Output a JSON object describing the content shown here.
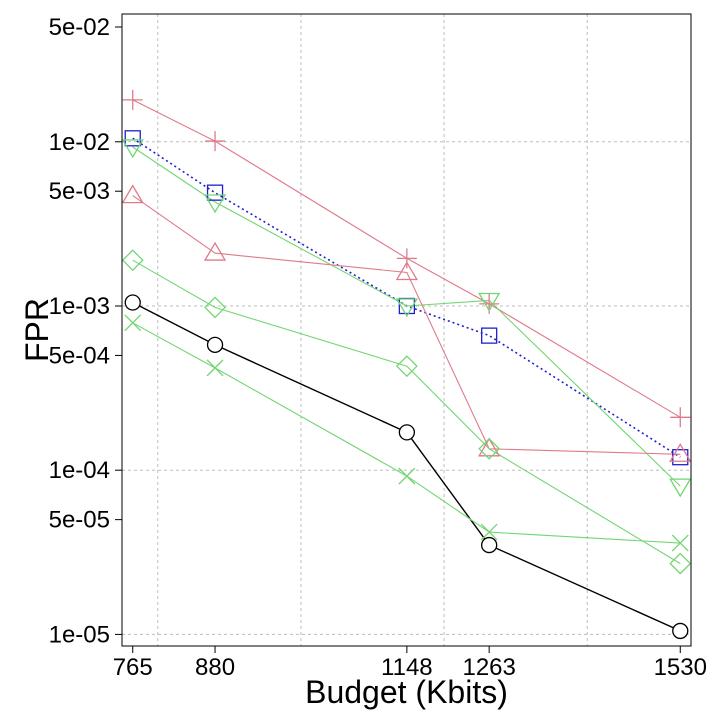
{
  "chart_data": {
    "type": "line",
    "title": "",
    "xlabel": "Budget (Kbits)",
    "ylabel": "FPR",
    "x_ticks": [
      765,
      880,
      1148,
      1263,
      1530
    ],
    "x_tick_labels": [
      "765",
      "880",
      "1148",
      "1263",
      "1530"
    ],
    "x_grid": [
      800,
      1000,
      1200,
      1400
    ],
    "xlim": [
      750,
      1545
    ],
    "y_scale": "log",
    "ylim": [
      8.5e-06,
      0.06
    ],
    "y_ticks": [
      0.05,
      0.01,
      0.005,
      0.001,
      0.0005,
      0.0001,
      5e-05,
      1e-05
    ],
    "y_tick_labels": [
      "5e-02",
      "1e-02",
      "5e-03",
      "1e-03",
      "5e-04",
      "1e-04",
      "5e-05",
      "1e-05"
    ],
    "y_grid": [
      0.01,
      0.001,
      0.0001,
      1e-05
    ],
    "grid": true,
    "legend": "none",
    "series": [
      {
        "name": "plus",
        "marker": "plus",
        "color": "#e07a8a",
        "dash": "solid",
        "x": [
          765,
          880,
          1148,
          1263,
          1530
        ],
        "y": [
          0.018,
          0.0101,
          0.00195,
          0.00103,
          0.00021
        ]
      },
      {
        "name": "square",
        "marker": "square",
        "color": "#1f1fd0",
        "dash": "dotted",
        "x": [
          765,
          880,
          1148,
          1263,
          1530
        ],
        "y": [
          0.0105,
          0.0049,
          0.001,
          0.00066,
          0.00012
        ]
      },
      {
        "name": "triangle-down",
        "marker": "triangle-down",
        "color": "#72d672",
        "dash": "solid",
        "x": [
          765,
          880,
          1148,
          1263,
          1530
        ],
        "y": [
          0.0093,
          0.0043,
          0.001,
          0.00108,
          8e-05
        ]
      },
      {
        "name": "triangle-up",
        "marker": "triangle-up",
        "color": "#e07a8a",
        "dash": "solid",
        "x": [
          765,
          880,
          1148,
          1263,
          1530
        ],
        "y": [
          0.0047,
          0.0021,
          0.0016,
          0.000135,
          0.000125
        ]
      },
      {
        "name": "diamond",
        "marker": "diamond",
        "color": "#72d672",
        "dash": "solid",
        "x": [
          765,
          880,
          1148,
          1263,
          1530
        ],
        "y": [
          0.0019,
          0.00098,
          0.00043,
          0.000135,
          2.7e-05
        ]
      },
      {
        "name": "circle",
        "marker": "circle",
        "color": "#000000",
        "dash": "solid",
        "x": [
          765,
          880,
          1148,
          1263,
          1530
        ],
        "y": [
          0.00105,
          0.00058,
          0.00017,
          3.5e-05,
          1.05e-05
        ]
      },
      {
        "name": "x",
        "marker": "x",
        "color": "#72d672",
        "dash": "solid",
        "x": [
          765,
          880,
          1148,
          1263,
          1530
        ],
        "y": [
          0.00079,
          0.00042,
          9.2e-05,
          4.2e-05,
          3.6e-05
        ]
      }
    ]
  }
}
